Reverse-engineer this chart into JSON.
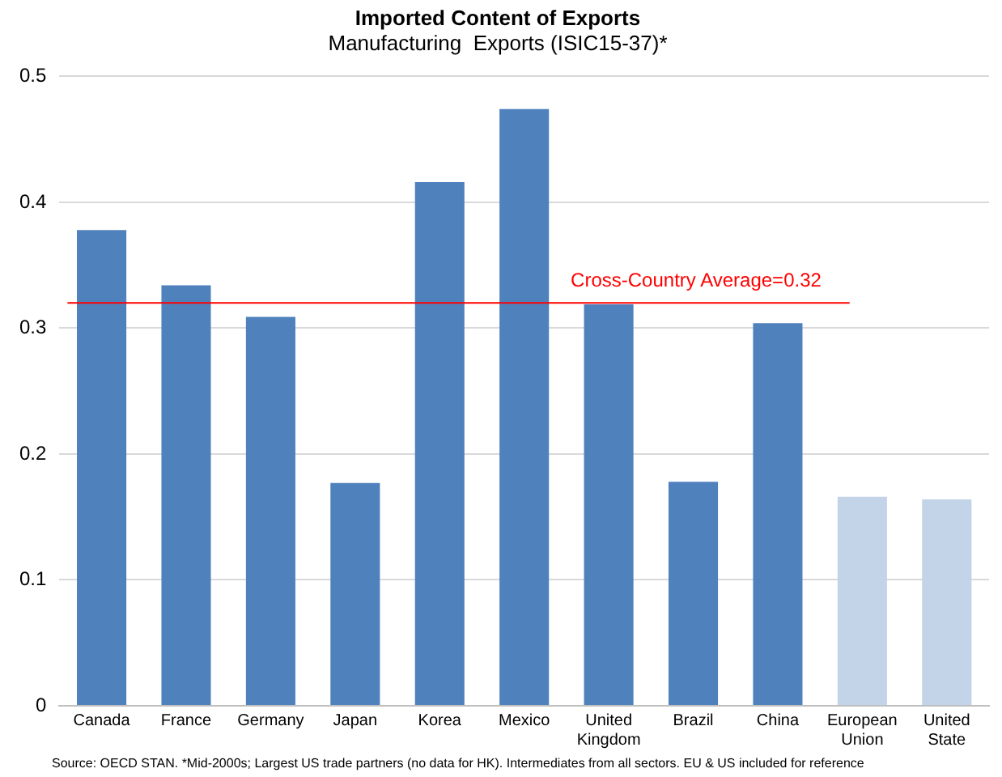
{
  "chart_data": {
    "type": "bar",
    "title": "Imported Content of Exports",
    "subtitle": "Manufacturing  Exports (ISIC15-37)*",
    "categories": [
      "Canada",
      "France",
      "Germany",
      "Japan",
      "Korea",
      "Mexico",
      "United Kingdom",
      "Brazil",
      "China",
      "European Union",
      "United State"
    ],
    "values": [
      0.378,
      0.334,
      0.309,
      0.177,
      0.416,
      0.474,
      0.319,
      0.178,
      0.304,
      0.166,
      0.164
    ],
    "colors": [
      "#4f81bd",
      "#4f81bd",
      "#4f81bd",
      "#4f81bd",
      "#4f81bd",
      "#4f81bd",
      "#4f81bd",
      "#4f81bd",
      "#4f81bd",
      "#c3d3e8",
      "#c3d3e8"
    ],
    "ylim": [
      0,
      0.5
    ],
    "yticks": [
      {
        "value": 0,
        "label": "0"
      },
      0.1,
      0.2,
      0.3,
      0.4,
      0.5
    ],
    "grid": "y",
    "legend": false,
    "ref_lines": [
      {
        "axis": "y",
        "value": 0.32,
        "label": "Cross-Country Average=0.32",
        "color": "#ff0000"
      }
    ],
    "annotations": [
      "Source: OECD STAN. *Mid-2000s; Largest US trade partners (no data for HK). Intermediates from all sectors. EU & US included for reference"
    ]
  }
}
